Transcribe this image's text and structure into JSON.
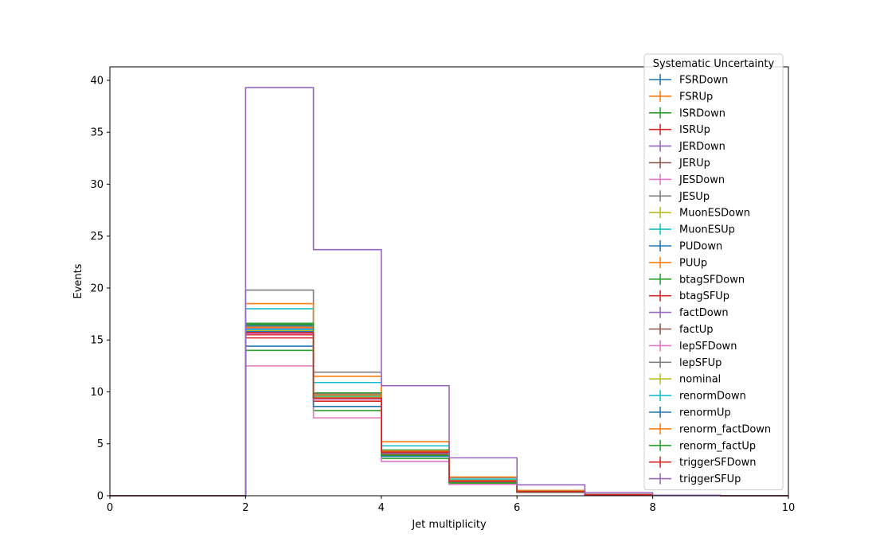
{
  "chart_data": {
    "type": "line",
    "style": "step-histogram",
    "xlabel": "Jet multiplicity",
    "ylabel": "Events",
    "xlim": [
      0,
      10
    ],
    "ylim": [
      0,
      41.3
    ],
    "x_ticks": [
      0,
      2,
      4,
      6,
      8,
      10
    ],
    "y_ticks": [
      0,
      5,
      10,
      15,
      20,
      25,
      30,
      35,
      40
    ],
    "bin_edges": [
      0,
      1,
      2,
      3,
      4,
      5,
      6,
      7,
      8,
      9,
      10
    ],
    "grid": false,
    "legend": {
      "title": "Systematic Uncertainty",
      "placement": "upper-right"
    },
    "series": [
      {
        "name": "FSRDown",
        "color": "#1f77b4",
        "values": [
          0,
          0,
          16.4,
          9.3,
          4.2,
          1.4,
          0.4,
          0.1,
          0.02,
          0
        ]
      },
      {
        "name": "FSRUp",
        "color": "#ff7f0e",
        "values": [
          0,
          0,
          15.8,
          9.6,
          4.3,
          1.5,
          0.4,
          0.1,
          0.02,
          0
        ]
      },
      {
        "name": "ISRDown",
        "color": "#2ca02c",
        "values": [
          0,
          0,
          14.0,
          8.2,
          3.6,
          1.2,
          0.35,
          0.1,
          0.02,
          0
        ]
      },
      {
        "name": "ISRUp",
        "color": "#d62728",
        "values": [
          0,
          0,
          15.2,
          9.1,
          4.0,
          1.35,
          0.4,
          0.1,
          0.02,
          0
        ]
      },
      {
        "name": "JERDown",
        "color": "#9467bd",
        "values": [
          0,
          0,
          16.1,
          9.6,
          4.3,
          1.45,
          0.4,
          0.1,
          0.02,
          0
        ]
      },
      {
        "name": "JERUp",
        "color": "#8c564b",
        "values": [
          0,
          0,
          15.9,
          9.5,
          4.2,
          1.4,
          0.4,
          0.1,
          0.02,
          0
        ]
      },
      {
        "name": "JESDown",
        "color": "#e377c2",
        "values": [
          0,
          0,
          12.5,
          7.5,
          3.3,
          1.1,
          0.3,
          0.08,
          0.02,
          0
        ]
      },
      {
        "name": "JESUp",
        "color": "#7f7f7f",
        "values": [
          0,
          0,
          19.8,
          11.9,
          5.2,
          1.75,
          0.5,
          0.12,
          0.03,
          0
        ]
      },
      {
        "name": "MuonESDown",
        "color": "#bcbd22",
        "values": [
          0,
          0,
          15.9,
          9.5,
          4.2,
          1.4,
          0.4,
          0.1,
          0.02,
          0
        ]
      },
      {
        "name": "MuonESUp",
        "color": "#17becf",
        "values": [
          0,
          0,
          18.0,
          10.9,
          4.8,
          1.6,
          0.45,
          0.11,
          0.03,
          0
        ]
      },
      {
        "name": "PUDown",
        "color": "#1f77b4",
        "values": [
          0,
          0,
          14.4,
          8.6,
          3.8,
          1.28,
          0.36,
          0.09,
          0.02,
          0
        ]
      },
      {
        "name": "PUUp",
        "color": "#ff7f0e",
        "values": [
          0,
          0,
          18.5,
          11.5,
          5.2,
          1.8,
          0.5,
          0.12,
          0.03,
          0
        ]
      },
      {
        "name": "btagSFDown",
        "color": "#2ca02c",
        "values": [
          0,
          0,
          16.5,
          9.9,
          4.4,
          1.47,
          0.42,
          0.1,
          0.02,
          0
        ]
      },
      {
        "name": "btagSFUp",
        "color": "#d62728",
        "values": [
          0,
          0,
          15.5,
          9.3,
          4.1,
          1.37,
          0.39,
          0.1,
          0.02,
          0
        ]
      },
      {
        "name": "factDown",
        "color": "#9467bd",
        "values": [
          0,
          0,
          16.2,
          9.7,
          4.3,
          1.44,
          0.41,
          0.1,
          0.02,
          0
        ]
      },
      {
        "name": "factUp",
        "color": "#8c564b",
        "values": [
          0,
          0,
          15.7,
          9.4,
          4.2,
          1.39,
          0.4,
          0.1,
          0.02,
          0
        ]
      },
      {
        "name": "lepSFDown",
        "color": "#e377c2",
        "values": [
          0,
          0,
          15.6,
          9.3,
          4.1,
          1.38,
          0.39,
          0.1,
          0.02,
          0
        ]
      },
      {
        "name": "lepSFUp",
        "color": "#7f7f7f",
        "values": [
          0,
          0,
          16.3,
          9.8,
          4.3,
          1.45,
          0.41,
          0.1,
          0.02,
          0
        ]
      },
      {
        "name": "nominal",
        "color": "#bcbd22",
        "values": [
          0,
          0,
          15.9,
          9.5,
          4.2,
          1.41,
          0.4,
          0.1,
          0.02,
          0
        ]
      },
      {
        "name": "renormDown",
        "color": "#17becf",
        "values": [
          0,
          0,
          16.0,
          9.6,
          4.25,
          1.42,
          0.4,
          0.1,
          0.02,
          0
        ]
      },
      {
        "name": "renormUp",
        "color": "#1f77b4",
        "values": [
          0,
          0,
          15.8,
          9.4,
          4.15,
          1.4,
          0.4,
          0.1,
          0.02,
          0
        ]
      },
      {
        "name": "renorm_factDown",
        "color": "#ff7f0e",
        "values": [
          0,
          0,
          16.2,
          9.7,
          4.3,
          1.44,
          0.41,
          0.1,
          0.02,
          0
        ]
      },
      {
        "name": "renorm_factUp",
        "color": "#2ca02c",
        "values": [
          0,
          0,
          16.6,
          9.4,
          3.9,
          1.25,
          0.35,
          0.09,
          0.02,
          0
        ]
      },
      {
        "name": "triggerSFDown",
        "color": "#d62728",
        "values": [
          0,
          0,
          15.7,
          9.4,
          4.2,
          1.39,
          0.4,
          0.1,
          0.02,
          0
        ]
      },
      {
        "name": "triggerSFUp",
        "color": "#9467bd",
        "values": [
          0,
          0,
          39.3,
          23.7,
          10.6,
          3.65,
          1.05,
          0.28,
          0.05,
          0
        ]
      }
    ]
  }
}
